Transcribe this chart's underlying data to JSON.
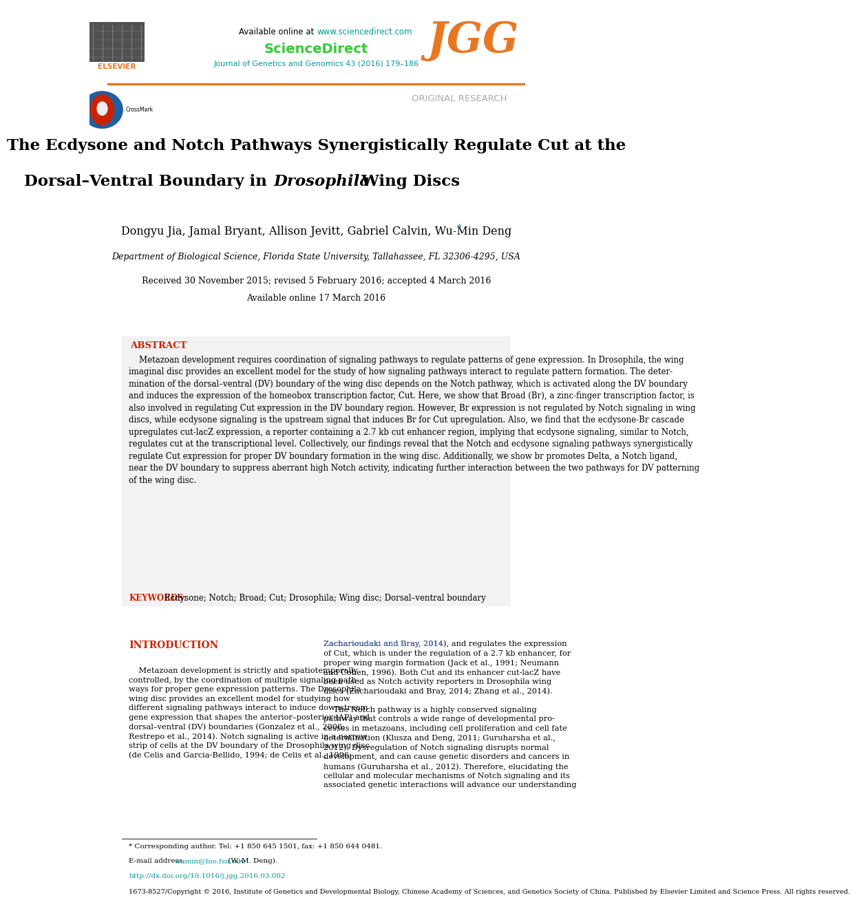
{
  "bg_color": "#ffffff",
  "page_width": 9.92,
  "page_height": 13.23,
  "orange_color": "#E87722",
  "red_color": "#CC2200",
  "green_color": "#4CAF50",
  "teal_color": "#009999",
  "blue_link_color": "#4472C4",
  "gray_section": "#F2F2F2",
  "header_line_color": "#E87722",
  "jgg_color": "#E87722",
  "elsevier_color": "#E87722",
  "authors": "Dongyu Jia, Jamal Bryant, Allison Jevitt, Gabriel Calvin, Wu-Min Deng",
  "affiliation": "Department of Biological Science, Florida State University, Tallahassee, FL 32306-4295, USA",
  "received": "Received 30 November 2015; revised 5 February 2016; accepted 4 March 2016",
  "available": "Available online 17 March 2016",
  "abstract_label": "ABSTRACT",
  "keywords_label": "KEYWORDS:",
  "keywords_text": " Ecdysone; Notch; Broad; Cut; Drosophila; Wing disc; Dorsal–ventral boundary",
  "original_research": "ORIGINAL RESEARCH",
  "intro_label": "INTRODUCTION",
  "footer_note": "* Corresponding author. Tel: +1 850 645 1501, fax: +1 850 644 0481.",
  "footer_doi": "http://dx.doi.org/10.1016/j.jgg.2016.03.002",
  "footer_copyright": "1673-8527/Copyright © 2016, Institute of Genetics and Developmental Biology, Chinese Academy of Sciences, and Genetics Society of China. Published by Elsevier Limited and Science Press. All rights reserved.",
  "sciencedirect_url": "www.sciencedirect.com",
  "journal_info": "Journal of Genetics and Genomics 43 (2016) 179–186"
}
